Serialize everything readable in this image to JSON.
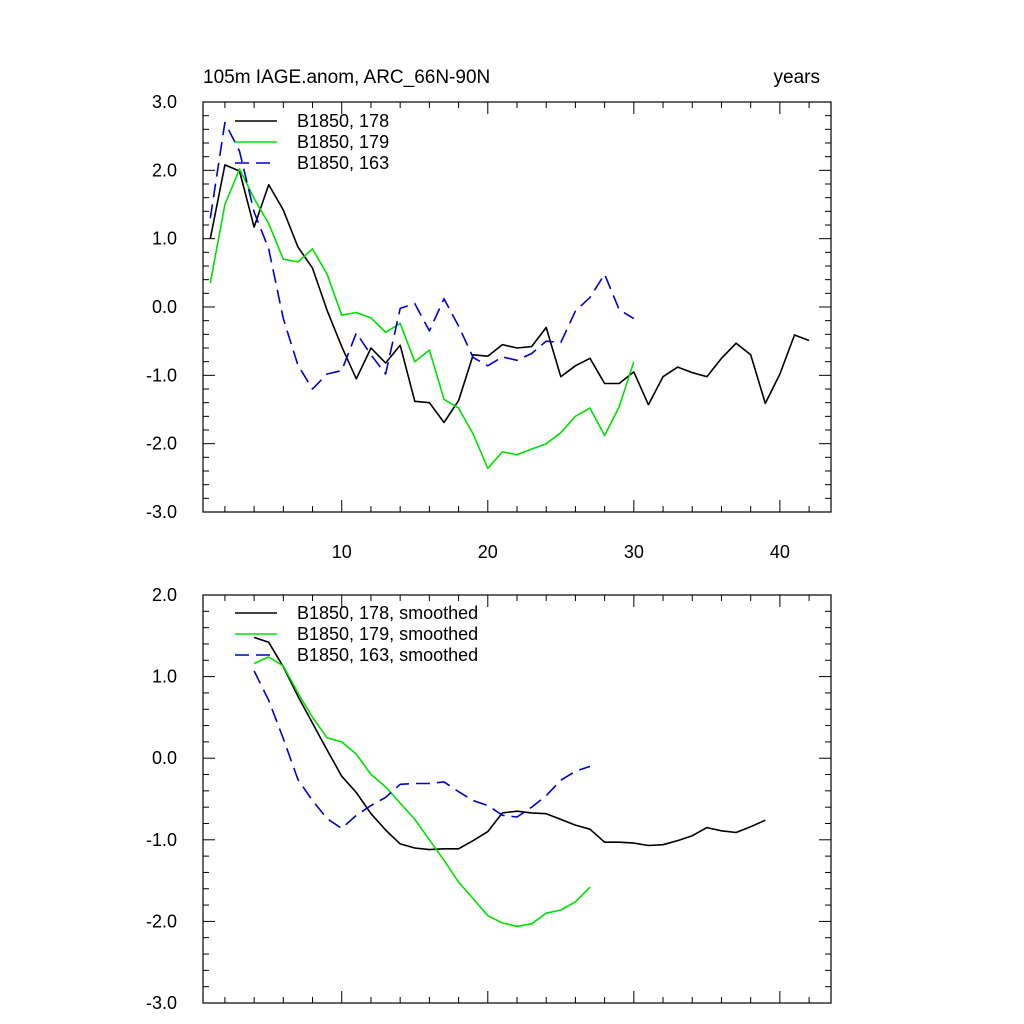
{
  "colors": {
    "black": "#000000",
    "green": "#00e000",
    "blue": "#0000cc"
  },
  "chart_data": [
    {
      "type": "line",
      "title": "105m IAGE.anom, ARC_66N-90N",
      "units_label": "years",
      "xlim": [
        0.5,
        43.5
      ],
      "ylim": [
        -3.0,
        3.0
      ],
      "x_ticks": [
        10,
        20,
        30,
        40
      ],
      "x_tick_labels": [
        "10",
        "20",
        "30",
        "40"
      ],
      "y_ticks": [
        -3.0,
        -2.0,
        -1.0,
        0.0,
        1.0,
        2.0,
        3.0
      ],
      "y_tick_labels": [
        "-3.0",
        "-2.0",
        "-1.0",
        "0.0",
        "1.0",
        "2.0",
        "3.0"
      ],
      "legend_position": "top-left",
      "series": [
        {
          "name": "B1850, 178",
          "color": "#000000",
          "dash": "solid",
          "x": [
            1,
            2,
            3,
            4,
            5,
            6,
            7,
            8,
            9,
            10,
            11,
            12,
            13,
            14,
            15,
            16,
            17,
            18,
            19,
            20,
            21,
            22,
            23,
            24,
            25,
            26,
            27,
            28,
            29,
            30,
            31,
            32,
            33,
            34,
            35,
            36,
            37,
            38,
            39,
            40,
            41,
            42
          ],
          "y": [
            1.0,
            2.08,
            1.99,
            1.17,
            1.79,
            1.42,
            0.88,
            0.57,
            -0.05,
            -0.58,
            -1.05,
            -0.6,
            -0.82,
            -0.56,
            -1.38,
            -1.4,
            -1.69,
            -1.37,
            -0.7,
            -0.72,
            -0.55,
            -0.6,
            -0.58,
            -0.3,
            -1.02,
            -0.86,
            -0.75,
            -1.12,
            -1.12,
            -0.95,
            -1.43,
            -1.02,
            -0.88,
            -0.96,
            -1.02,
            -0.75,
            -0.53,
            -0.7,
            -1.41,
            -0.98,
            -0.41,
            -0.49
          ]
        },
        {
          "name": "B1850, 179",
          "color": "#00e000",
          "dash": "solid",
          "x": [
            1,
            2,
            3,
            4,
            5,
            6,
            7,
            8,
            9,
            10,
            11,
            12,
            13,
            14,
            15,
            16,
            17,
            18,
            19,
            20,
            21,
            22,
            23,
            24,
            25,
            26,
            27,
            28,
            29,
            30
          ],
          "y": [
            0.35,
            1.5,
            2.02,
            1.59,
            1.22,
            0.7,
            0.66,
            0.85,
            0.48,
            -0.12,
            -0.08,
            -0.16,
            -0.37,
            -0.24,
            -0.8,
            -0.63,
            -1.35,
            -1.48,
            -1.86,
            -2.36,
            -2.12,
            -2.16,
            -2.08,
            -2.0,
            -1.84,
            -1.6,
            -1.48,
            -1.88,
            -1.46,
            -0.8
          ]
        },
        {
          "name": "B1850, 163",
          "color": "#0000cc",
          "dash": "dashed",
          "x": [
            1,
            2,
            3,
            4,
            5,
            6,
            7,
            8,
            9,
            10,
            11,
            12,
            13,
            14,
            15,
            16,
            17,
            18,
            19,
            20,
            21,
            22,
            23,
            24,
            25,
            26,
            27,
            28,
            29,
            30
          ],
          "y": [
            1.3,
            2.7,
            2.28,
            1.39,
            0.85,
            -0.17,
            -0.85,
            -1.2,
            -0.98,
            -0.93,
            -0.38,
            -0.7,
            -0.98,
            -0.02,
            0.05,
            -0.35,
            0.12,
            -0.28,
            -0.74,
            -0.86,
            -0.73,
            -0.78,
            -0.68,
            -0.5,
            -0.52,
            -0.06,
            0.14,
            0.48,
            -0.04,
            -0.17
          ]
        }
      ]
    },
    {
      "type": "line",
      "xlim": [
        0.5,
        43.5
      ],
      "ylim": [
        -3.0,
        2.0
      ],
      "x_ticks": [
        10,
        20,
        30,
        40
      ],
      "y_ticks": [
        -3.0,
        -2.0,
        -1.0,
        0.0,
        1.0,
        2.0
      ],
      "y_tick_labels": [
        "-3.0",
        "-2.0",
        "-1.0",
        "0.0",
        "1.0",
        "2.0"
      ],
      "legend_position": "top-left",
      "series": [
        {
          "name": "B1850, 178, smoothed",
          "color": "#000000",
          "dash": "solid",
          "x": [
            4,
            5,
            6,
            7,
            8,
            9,
            10,
            11,
            12,
            13,
            14,
            15,
            16,
            17,
            18,
            19,
            20,
            21,
            22,
            23,
            24,
            25,
            26,
            27,
            28,
            29,
            30,
            31,
            32,
            33,
            34,
            35,
            36,
            37,
            38,
            39
          ],
          "y": [
            1.48,
            1.42,
            1.12,
            0.76,
            0.43,
            0.1,
            -0.22,
            -0.42,
            -0.68,
            -0.88,
            -1.05,
            -1.1,
            -1.12,
            -1.11,
            -1.11,
            -1.01,
            -0.9,
            -0.67,
            -0.65,
            -0.67,
            -0.68,
            -0.75,
            -0.82,
            -0.87,
            -1.03,
            -1.03,
            -1.04,
            -1.07,
            -1.06,
            -1.01,
            -0.95,
            -0.85,
            -0.89,
            -0.91,
            -0.84,
            -0.76
          ]
        },
        {
          "name": "B1850, 179, smoothed",
          "color": "#00e000",
          "dash": "solid",
          "x": [
            4,
            5,
            6,
            7,
            8,
            9,
            10,
            11,
            12,
            13,
            14,
            15,
            16,
            17,
            18,
            19,
            20,
            21,
            22,
            23,
            24,
            25,
            26,
            27
          ],
          "y": [
            1.16,
            1.24,
            1.13,
            0.8,
            0.5,
            0.25,
            0.2,
            0.05,
            -0.2,
            -0.35,
            -0.55,
            -0.75,
            -1.0,
            -1.25,
            -1.52,
            -1.72,
            -1.93,
            -2.02,
            -2.06,
            -2.03,
            -1.9,
            -1.86,
            -1.76,
            -1.58
          ]
        },
        {
          "name": "B1850, 163, smoothed",
          "color": "#0000cc",
          "dash": "dashed",
          "x": [
            4,
            5,
            6,
            7,
            8,
            9,
            10,
            11,
            12,
            13,
            14,
            15,
            16,
            17,
            18,
            19,
            20,
            21,
            22,
            23,
            24,
            25,
            26,
            27
          ],
          "y": [
            1.07,
            0.71,
            0.24,
            -0.26,
            -0.52,
            -0.74,
            -0.86,
            -0.7,
            -0.58,
            -0.48,
            -0.32,
            -0.31,
            -0.31,
            -0.29,
            -0.41,
            -0.52,
            -0.58,
            -0.7,
            -0.72,
            -0.6,
            -0.46,
            -0.27,
            -0.16,
            -0.1
          ]
        }
      ]
    }
  ]
}
